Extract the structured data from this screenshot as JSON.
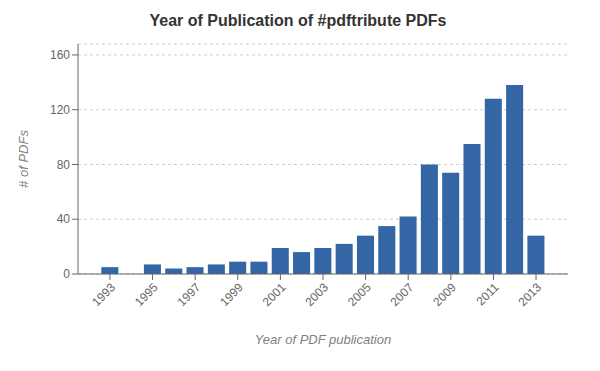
{
  "chart_data": {
    "type": "bar",
    "title": "Year of Publication of #pdftribute PDFs",
    "xlabel": "Year of PDF publication",
    "ylabel": "# of PDFs",
    "x": [
      1993,
      1994,
      1995,
      1996,
      1997,
      1998,
      1999,
      2000,
      2001,
      2002,
      2003,
      2004,
      2005,
      2006,
      2007,
      2008,
      2009,
      2010,
      2011,
      2012,
      2013
    ],
    "values": [
      5,
      0,
      7,
      4,
      5,
      7,
      9,
      9,
      19,
      16,
      19,
      22,
      28,
      35,
      42,
      80,
      74,
      95,
      128,
      138,
      28
    ],
    "color": "#3465a4",
    "xlim": [
      1991.5,
      2014.5
    ],
    "xticks": [
      1993,
      1995,
      1997,
      1999,
      2001,
      2003,
      2005,
      2007,
      2009,
      2011,
      2013
    ],
    "ylim": [
      0,
      168
    ],
    "yticks": [
      0,
      40,
      80,
      120,
      160
    ],
    "grid": true
  }
}
